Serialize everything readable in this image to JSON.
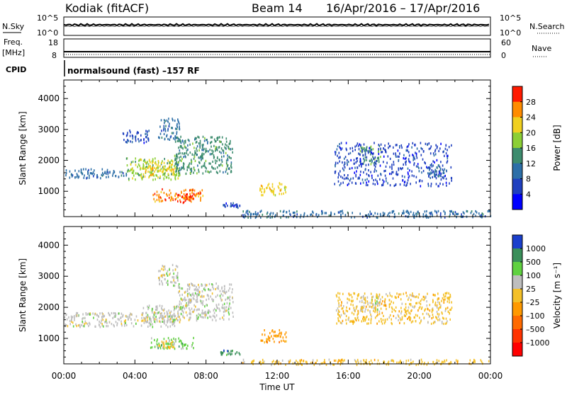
{
  "header": {
    "station": "Kodiak (fitACF)",
    "beam": "Beam 14",
    "date_range": "16/Apr/2016 – 17/Apr/2016"
  },
  "noise_panel": {
    "left_label": "N.Sky",
    "right_label": "N.Search",
    "left_ticks": [
      "10^5",
      "10^0"
    ],
    "right_ticks": [
      "10^5",
      "10^0"
    ]
  },
  "freq_panel": {
    "left_label_top": "Freq.",
    "left_label_unit": "[MHz]",
    "left_ticks": [
      "18",
      "8"
    ],
    "right_label": "Nave",
    "right_ticks": [
      "60",
      "0"
    ]
  },
  "cpid": {
    "label": "CPID",
    "text": "normalsound (fast) –157 RF"
  },
  "chart_data": [
    {
      "type": "heatmap",
      "name": "power",
      "ylabel": "Slant Range [km]",
      "xlabel": "",
      "ylim": [
        180,
        4600
      ],
      "yticks": [
        1000,
        2000,
        3000,
        4000
      ],
      "colorbar": {
        "label": "Power [dB]",
        "ticks": [
          "28",
          "24",
          "20",
          "16",
          "12",
          "8",
          "4"
        ],
        "levels": 8,
        "colors": [
          "#0000ff",
          "#1f3fbf",
          "#2d6fa8",
          "#3d8c6e",
          "#8ccf35",
          "#f0d020",
          "#ff8c00",
          "#ff1a00"
        ]
      },
      "regions": [
        {
          "t0": 0.0,
          "t1": 3.5,
          "r0": 1450,
          "r1": 1750,
          "level": 2
        },
        {
          "t0": 3.5,
          "t1": 6.5,
          "r0": 1400,
          "r1": 2100,
          "level": 4
        },
        {
          "t0": 4.5,
          "t1": 6.2,
          "r0": 1550,
          "r1": 2050,
          "level": 5
        },
        {
          "t0": 6.2,
          "t1": 9.5,
          "r0": 1600,
          "r1": 2800,
          "level": 3
        },
        {
          "t0": 5.0,
          "t1": 7.8,
          "r0": 700,
          "r1": 1100,
          "level": 6
        },
        {
          "t0": 6.3,
          "t1": 7.3,
          "r0": 650,
          "r1": 950,
          "level": 7
        },
        {
          "t0": 5.3,
          "t1": 6.5,
          "r0": 2700,
          "r1": 3400,
          "level": 2
        },
        {
          "t0": 3.3,
          "t1": 4.8,
          "r0": 2600,
          "r1": 3000,
          "level": 1
        },
        {
          "t0": 8.8,
          "t1": 9.9,
          "r0": 500,
          "r1": 650,
          "level": 1
        },
        {
          "t0": 11.0,
          "t1": 12.5,
          "r0": 900,
          "r1": 1300,
          "level": 5
        },
        {
          "t0": 16.6,
          "t1": 17.8,
          "r0": 1900,
          "r1": 2500,
          "level": 3
        },
        {
          "t0": 15.2,
          "t1": 21.8,
          "r0": 1200,
          "r1": 2600,
          "level": 1
        },
        {
          "t0": 20.4,
          "t1": 21.5,
          "r0": 1500,
          "r1": 1900,
          "level": 2
        },
        {
          "t0": 10.0,
          "t1": 24.0,
          "r0": 180,
          "r1": 400,
          "level": 2
        }
      ]
    },
    {
      "type": "heatmap",
      "name": "velocity",
      "ylabel": "Slant Range [km]",
      "xlabel": "Time UT",
      "ylim": [
        180,
        4600
      ],
      "yticks": [
        1000,
        2000,
        3000,
        4000
      ],
      "colorbar": {
        "label": "Velocity [m s⁻¹]",
        "ticks": [
          "1000",
          "500",
          "100",
          "25",
          "–25",
          "–100",
          "–500",
          "–1000"
        ],
        "levels": 9,
        "colors": [
          "#1a3fcc",
          "#3a8f5a",
          "#5fd140",
          "#bebebe",
          "#f4c028",
          "#ff9900",
          "#ff6a00",
          "#ff3300",
          "#ff0000"
        ]
      },
      "regions": [
        {
          "t0": 0.0,
          "t1": 6.3,
          "r0": 1400,
          "r1": 1850,
          "level": 3
        },
        {
          "t0": 4.3,
          "t1": 6.6,
          "r0": 1550,
          "r1": 2100,
          "level": 3
        },
        {
          "t0": 6.4,
          "t1": 9.5,
          "r0": 1600,
          "r1": 2800,
          "level": 3
        },
        {
          "t0": 4.8,
          "t1": 7.3,
          "r0": 700,
          "r1": 1050,
          "level": 2
        },
        {
          "t0": 5.3,
          "t1": 6.2,
          "r0": 720,
          "r1": 950,
          "level": 4
        },
        {
          "t0": 5.3,
          "t1": 6.4,
          "r0": 2700,
          "r1": 3400,
          "level": 3
        },
        {
          "t0": 8.8,
          "t1": 9.9,
          "r0": 500,
          "r1": 650,
          "level": 1
        },
        {
          "t0": 11.0,
          "t1": 12.5,
          "r0": 900,
          "r1": 1300,
          "level": 5
        },
        {
          "t0": 15.3,
          "t1": 21.8,
          "r0": 1500,
          "r1": 2500,
          "level": 4
        },
        {
          "t0": 16.6,
          "t1": 17.8,
          "r0": 1900,
          "r1": 2400,
          "level": 3
        },
        {
          "t0": 10.0,
          "t1": 24.0,
          "r0": 180,
          "r1": 350,
          "level": 4
        }
      ]
    }
  ],
  "xaxis": {
    "label": "Time UT",
    "ticks": [
      "00:00",
      "04:00",
      "08:00",
      "12:00",
      "16:00",
      "20:00",
      "00:00"
    ],
    "xlim": [
      0,
      24
    ]
  }
}
